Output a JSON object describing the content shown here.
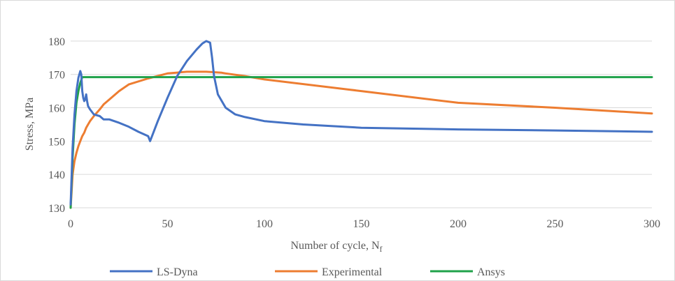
{
  "chart_data": {
    "type": "line",
    "title": "",
    "xlabel": "Number of cycle, N",
    "xlabel_sub": "f",
    "ylabel": "Stress, MPa",
    "xlim": [
      0,
      300
    ],
    "ylim": [
      130,
      185
    ],
    "xticks": [
      0,
      50,
      100,
      150,
      200,
      250,
      300
    ],
    "yticks": [
      130,
      140,
      150,
      160,
      170,
      180
    ],
    "grid": "horizontal",
    "legend_position": "bottom",
    "series": [
      {
        "name": "LS-Dyna",
        "color": "#4472c4",
        "x": [
          0,
          1,
          2,
          3,
          4,
          5,
          5.5,
          6,
          6.5,
          7,
          7.5,
          8,
          8.5,
          9,
          10,
          12,
          15,
          17,
          18,
          20,
          25,
          30,
          35,
          40,
          41,
          45,
          50,
          55,
          60,
          65,
          68,
          70,
          72,
          73,
          74,
          76,
          80,
          85,
          90,
          100,
          120,
          150,
          200,
          250,
          300
        ],
        "y": [
          131,
          148,
          158,
          165,
          169,
          171,
          170,
          165,
          163,
          162,
          162.5,
          164,
          162,
          160.5,
          159.5,
          158,
          157.5,
          156.5,
          156.5,
          156.5,
          155.5,
          154.3,
          152.8,
          151.5,
          150,
          156,
          163,
          169.5,
          174,
          177.5,
          179.3,
          180,
          179.5,
          175,
          169.5,
          164,
          160,
          158,
          157.2,
          156,
          155,
          154,
          153.5,
          153.2,
          152.8
        ]
      },
      {
        "name": "Experimental",
        "color": "#ed7d31",
        "x": [
          0,
          1,
          2,
          3,
          4,
          5,
          6,
          7,
          8,
          9,
          10,
          12,
          15,
          17,
          20,
          25,
          30,
          40,
          50,
          60,
          70,
          78,
          80,
          90,
          100,
          150,
          200,
          250,
          300
        ],
        "y": [
          130,
          140,
          144,
          146.5,
          148.5,
          150,
          151.5,
          152.5,
          154,
          155,
          156,
          157.5,
          159.5,
          161,
          162.5,
          165,
          167,
          168.8,
          170.3,
          170.8,
          170.8,
          170.5,
          170.3,
          169.5,
          168.5,
          165,
          161.5,
          160,
          158.3
        ]
      },
      {
        "name": "Ansys",
        "color": "#1fa24a",
        "x": [
          0,
          1,
          2,
          3,
          4,
          5,
          6,
          8,
          50,
          100,
          150,
          200,
          250,
          300
        ],
        "y": [
          130,
          145,
          155,
          161.5,
          165,
          167.5,
          169.2,
          169.2,
          169.2,
          169.2,
          169.2,
          169.2,
          169.2,
          169.2
        ]
      }
    ]
  }
}
